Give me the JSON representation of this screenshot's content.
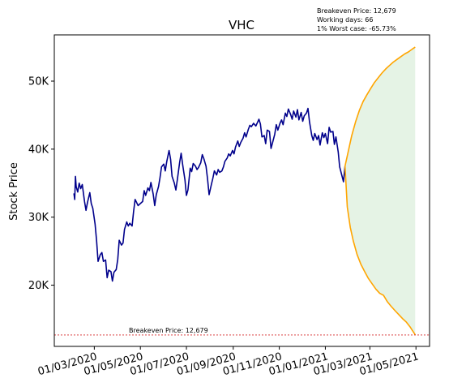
{
  "chart_data": {
    "type": "line",
    "title": "VHC",
    "xlabel": "",
    "ylabel": "Stock Price",
    "x_ticks": [
      "01/03/2020",
      "01/05/2020",
      "01/07/2020",
      "01/09/2020",
      "01/11/2020",
      "01/01/2021",
      "01/03/2021",
      "01/05/2021"
    ],
    "y_ticks": [
      "20K",
      "30K",
      "40K",
      "50K"
    ],
    "y_tick_values": [
      20000,
      30000,
      40000,
      50000
    ],
    "xlim": [
      "2020-01-08",
      "2021-05-19"
    ],
    "ylim": [
      11000,
      56800
    ],
    "grid": false,
    "info_box": {
      "line1": "Breakeven Price: 12,679",
      "line2": "Working days: 66",
      "line3": "1% Worst case: -65.73%"
    },
    "breakeven": {
      "value": 12679,
      "label": "Breakeven Price: 12,679",
      "color": "#d62728"
    },
    "series": [
      {
        "color": "#00008b",
        "points": [
          [
            "2020-02-03",
            33500
          ],
          [
            "2020-02-04",
            32600
          ],
          [
            "2020-02-05",
            36000
          ],
          [
            "2020-02-06",
            34500
          ],
          [
            "2020-02-08",
            33700
          ],
          [
            "2020-02-10",
            35000
          ],
          [
            "2020-02-12",
            34200
          ],
          [
            "2020-02-14",
            34800
          ],
          [
            "2020-02-17",
            32300
          ],
          [
            "2020-02-19",
            31000
          ],
          [
            "2020-02-21",
            32200
          ],
          [
            "2020-02-24",
            33600
          ],
          [
            "2020-02-26",
            32000
          ],
          [
            "2020-02-28",
            31300
          ],
          [
            "2020-03-02",
            29000
          ],
          [
            "2020-03-04",
            26500
          ],
          [
            "2020-03-06",
            23500
          ],
          [
            "2020-03-09",
            24500
          ],
          [
            "2020-03-11",
            24800
          ],
          [
            "2020-03-13",
            23500
          ],
          [
            "2020-03-16",
            23700
          ],
          [
            "2020-03-18",
            21100
          ],
          [
            "2020-03-20",
            22200
          ],
          [
            "2020-03-23",
            22000
          ],
          [
            "2020-03-25",
            20600
          ],
          [
            "2020-03-27",
            21900
          ],
          [
            "2020-03-30",
            22300
          ],
          [
            "2020-04-01",
            23800
          ],
          [
            "2020-04-03",
            26600
          ],
          [
            "2020-04-06",
            25900
          ],
          [
            "2020-04-08",
            26200
          ],
          [
            "2020-04-10",
            28200
          ],
          [
            "2020-04-13",
            29300
          ],
          [
            "2020-04-15",
            28700
          ],
          [
            "2020-04-17",
            29100
          ],
          [
            "2020-04-20",
            28700
          ],
          [
            "2020-04-22",
            30800
          ],
          [
            "2020-04-24",
            32600
          ],
          [
            "2020-04-28",
            31700
          ],
          [
            "2020-05-04",
            32300
          ],
          [
            "2020-05-06",
            33900
          ],
          [
            "2020-05-08",
            33200
          ],
          [
            "2020-05-11",
            34300
          ],
          [
            "2020-05-13",
            33900
          ],
          [
            "2020-05-15",
            35100
          ],
          [
            "2020-05-18",
            33400
          ],
          [
            "2020-05-20",
            31700
          ],
          [
            "2020-05-22",
            33300
          ],
          [
            "2020-05-25",
            34500
          ],
          [
            "2020-05-27",
            35800
          ],
          [
            "2020-05-29",
            37400
          ],
          [
            "2020-06-01",
            37800
          ],
          [
            "2020-06-03",
            36800
          ],
          [
            "2020-06-05",
            38200
          ],
          [
            "2020-06-08",
            39800
          ],
          [
            "2020-06-10",
            38500
          ],
          [
            "2020-06-12",
            36000
          ],
          [
            "2020-06-15",
            35000
          ],
          [
            "2020-06-17",
            34000
          ],
          [
            "2020-06-19",
            35500
          ],
          [
            "2020-06-22",
            38000
          ],
          [
            "2020-06-24",
            39400
          ],
          [
            "2020-06-26",
            37700
          ],
          [
            "2020-06-29",
            35500
          ],
          [
            "2020-07-01",
            33200
          ],
          [
            "2020-07-03",
            34000
          ],
          [
            "2020-07-06",
            37200
          ],
          [
            "2020-07-08",
            36700
          ],
          [
            "2020-07-10",
            37900
          ],
          [
            "2020-07-13",
            37500
          ],
          [
            "2020-07-15",
            37000
          ],
          [
            "2020-07-17",
            37300
          ],
          [
            "2020-07-20",
            38000
          ],
          [
            "2020-07-22",
            39200
          ],
          [
            "2020-07-24",
            38600
          ],
          [
            "2020-07-27",
            37500
          ],
          [
            "2020-07-29",
            35600
          ],
          [
            "2020-07-31",
            33300
          ],
          [
            "2020-08-03",
            34800
          ],
          [
            "2020-08-05",
            35700
          ],
          [
            "2020-08-07",
            36800
          ],
          [
            "2020-08-10",
            36200
          ],
          [
            "2020-08-12",
            37000
          ],
          [
            "2020-08-14",
            36600
          ],
          [
            "2020-08-17",
            36800
          ],
          [
            "2020-08-19",
            37400
          ],
          [
            "2020-08-21",
            38200
          ],
          [
            "2020-08-24",
            38700
          ],
          [
            "2020-08-26",
            39300
          ],
          [
            "2020-08-28",
            39000
          ],
          [
            "2020-08-31",
            39800
          ],
          [
            "2020-09-02",
            39300
          ],
          [
            "2020-09-04",
            40300
          ],
          [
            "2020-09-07",
            41200
          ],
          [
            "2020-09-09",
            40400
          ],
          [
            "2020-09-11",
            41000
          ],
          [
            "2020-09-14",
            41600
          ],
          [
            "2020-09-16",
            42400
          ],
          [
            "2020-09-18",
            41800
          ],
          [
            "2020-09-21",
            42900
          ],
          [
            "2020-09-23",
            43500
          ],
          [
            "2020-09-25",
            43300
          ],
          [
            "2020-09-28",
            43800
          ],
          [
            "2020-10-01",
            43400
          ],
          [
            "2020-10-05",
            44400
          ],
          [
            "2020-10-07",
            43700
          ],
          [
            "2020-10-09",
            41800
          ],
          [
            "2020-10-12",
            42000
          ],
          [
            "2020-10-14",
            40800
          ],
          [
            "2020-10-16",
            42800
          ],
          [
            "2020-10-19",
            42600
          ],
          [
            "2020-10-21",
            40100
          ],
          [
            "2020-10-23",
            40900
          ],
          [
            "2020-10-26",
            42200
          ],
          [
            "2020-10-28",
            43600
          ],
          [
            "2020-10-30",
            42800
          ],
          [
            "2020-11-02",
            43800
          ],
          [
            "2020-11-04",
            44300
          ],
          [
            "2020-11-06",
            43600
          ],
          [
            "2020-11-09",
            45300
          ],
          [
            "2020-11-11",
            44800
          ],
          [
            "2020-11-13",
            45900
          ],
          [
            "2020-11-16",
            45100
          ],
          [
            "2020-11-18",
            44400
          ],
          [
            "2020-11-20",
            45600
          ],
          [
            "2020-11-23",
            44700
          ],
          [
            "2020-11-25",
            45800
          ],
          [
            "2020-11-27",
            44300
          ],
          [
            "2020-11-30",
            45400
          ],
          [
            "2020-12-02",
            44100
          ],
          [
            "2020-12-04",
            44900
          ],
          [
            "2020-12-07",
            45300
          ],
          [
            "2020-12-09",
            46000
          ],
          [
            "2020-12-11",
            44000
          ],
          [
            "2020-12-14",
            42000
          ],
          [
            "2020-12-16",
            41300
          ],
          [
            "2020-12-18",
            42300
          ],
          [
            "2020-12-21",
            41400
          ],
          [
            "2020-12-23",
            42000
          ],
          [
            "2020-12-25",
            40600
          ],
          [
            "2020-12-28",
            42400
          ],
          [
            "2020-12-30",
            41700
          ],
          [
            "2021-01-01",
            42300
          ],
          [
            "2021-01-04",
            40800
          ],
          [
            "2021-01-06",
            43200
          ],
          [
            "2021-01-08",
            42500
          ],
          [
            "2021-01-11",
            42600
          ],
          [
            "2021-01-13",
            40700
          ],
          [
            "2021-01-15",
            41800
          ],
          [
            "2021-01-18",
            39600
          ],
          [
            "2021-01-20",
            37400
          ],
          [
            "2021-01-22",
            36500
          ],
          [
            "2021-01-25",
            35200
          ],
          [
            "2021-01-27",
            37500
          ]
        ]
      },
      {
        "color": "#ffa500",
        "points": [
          [
            "2021-01-27",
            37500
          ],
          [
            "2021-02-01",
            40000
          ],
          [
            "2021-02-05",
            42000
          ],
          [
            "2021-02-10",
            44000
          ],
          [
            "2021-02-15",
            45700
          ],
          [
            "2021-02-20",
            47000
          ],
          [
            "2021-02-25",
            48000
          ],
          [
            "2021-03-02",
            48900
          ],
          [
            "2021-03-07",
            49800
          ],
          [
            "2021-03-12",
            50500
          ],
          [
            "2021-03-17",
            51200
          ],
          [
            "2021-03-22",
            51800
          ],
          [
            "2021-03-27",
            52300
          ],
          [
            "2021-04-01",
            52800
          ],
          [
            "2021-04-06",
            53200
          ],
          [
            "2021-04-11",
            53600
          ],
          [
            "2021-04-16",
            54000
          ],
          [
            "2021-04-21",
            54300
          ],
          [
            "2021-04-26",
            54700
          ],
          [
            "2021-04-30",
            55000
          ]
        ]
      },
      {
        "color": "#ffa500",
        "points": [
          [
            "2021-01-27",
            37500
          ],
          [
            "2021-01-30",
            31500
          ],
          [
            "2021-02-03",
            28500
          ],
          [
            "2021-02-07",
            26500
          ],
          [
            "2021-02-12",
            24500
          ],
          [
            "2021-02-17",
            23100
          ],
          [
            "2021-02-22",
            22000
          ],
          [
            "2021-02-27",
            21000
          ],
          [
            "2021-03-04",
            20200
          ],
          [
            "2021-03-09",
            19400
          ],
          [
            "2021-03-14",
            18800
          ],
          [
            "2021-03-19",
            18500
          ],
          [
            "2021-03-24",
            17600
          ],
          [
            "2021-03-29",
            16900
          ],
          [
            "2021-04-03",
            16300
          ],
          [
            "2021-04-08",
            15700
          ],
          [
            "2021-04-13",
            15100
          ],
          [
            "2021-04-18",
            14600
          ],
          [
            "2021-04-23",
            13900
          ],
          [
            "2021-04-30",
            12700
          ]
        ]
      }
    ]
  }
}
